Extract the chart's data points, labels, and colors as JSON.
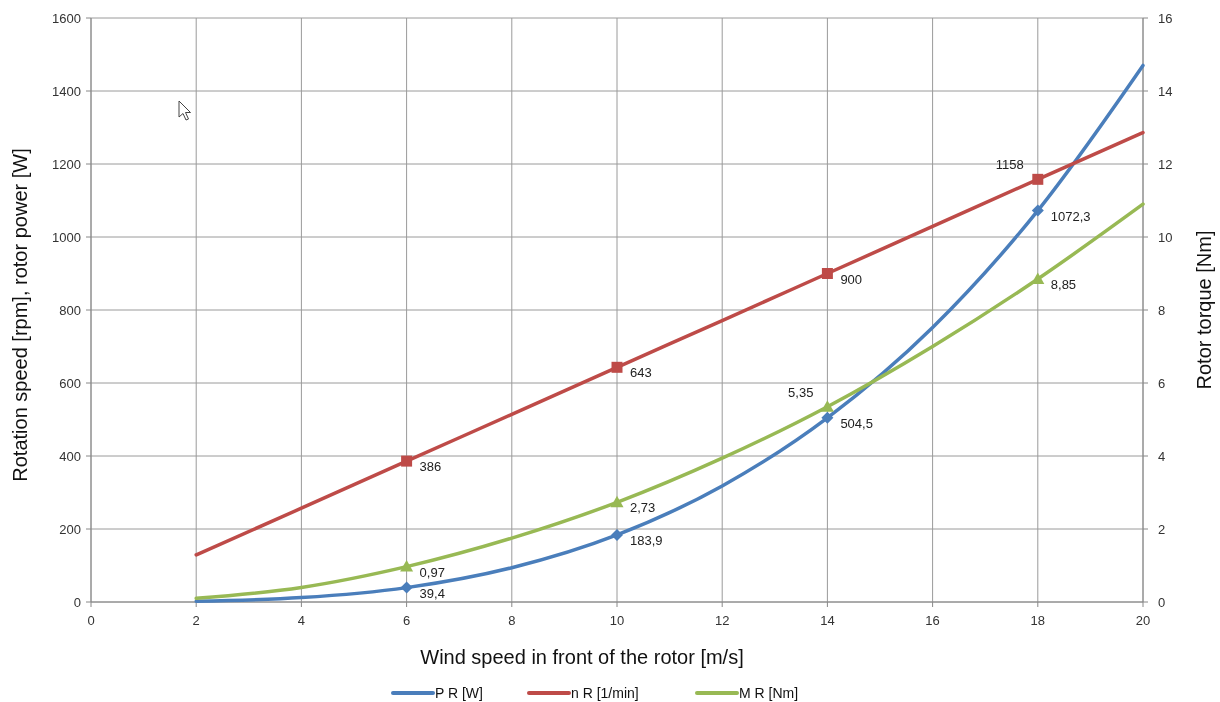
{
  "chart_data": {
    "type": "line",
    "xlabel": "Wind speed in front of the rotor [m/s]",
    "ylabel": "Rotation speed [rpm], rotor power [W]",
    "y2label": "Rotor torque [Nm]",
    "x": [
      2,
      4,
      6,
      8,
      10,
      12,
      14,
      16,
      18,
      20
    ],
    "series": [
      {
        "name": "P R [W]",
        "color": "#4a7ebb",
        "marker": "none",
        "values": [
          2,
          12,
          39.4,
          94,
          183.9,
          318,
          504.5,
          752,
          1072.3,
          1470
        ]
      },
      {
        "name": "n R [1/min]",
        "color": "#be4b48",
        "marker": "none",
        "values": [
          129,
          257,
          386,
          514,
          643,
          771,
          900,
          1029,
          1158,
          1286
        ]
      },
      {
        "name": "M R [Nm]",
        "color": "#98b954",
        "marker": "none",
        "axis": "y2",
        "values": [
          0.1,
          0.4,
          0.97,
          1.75,
          2.73,
          3.94,
          5.35,
          7.0,
          8.85,
          10.9
        ]
      },
      {
        "type": "scatter",
        "color": "#4a7ebb",
        "marker": "diamond",
        "x": [
          6,
          10,
          14,
          18
        ],
        "values": [
          39.4,
          183.9,
          504.5,
          1072.3
        ],
        "value_labels": [
          "39,4",
          "183,9",
          "504,5",
          "1072,3"
        ]
      },
      {
        "type": "scatter",
        "color": "#be4b48",
        "marker": "square",
        "x": [
          6,
          10,
          14,
          18
        ],
        "values": [
          386,
          643,
          900,
          1158
        ],
        "value_labels": [
          "386",
          "643",
          "900",
          "1158"
        ]
      },
      {
        "type": "scatter",
        "color": "#98b954",
        "marker": "triangle",
        "axis": "y2",
        "x": [
          6,
          10,
          14,
          18
        ],
        "values": [
          0.97,
          2.73,
          5.35,
          8.85
        ],
        "value_labels": [
          "0,97",
          "2,73",
          "5,35",
          "8,85"
        ]
      }
    ],
    "xlim": [
      0,
      20
    ],
    "xticks": [
      0,
      2,
      4,
      6,
      8,
      10,
      12,
      14,
      16,
      18,
      20
    ],
    "ylim": [
      0,
      1600
    ],
    "yticks": [
      0,
      200,
      400,
      600,
      800,
      1000,
      1200,
      1400,
      1600
    ],
    "y2lim": [
      0,
      16
    ],
    "y2ticks": [
      0,
      2,
      4,
      6,
      8,
      10,
      12,
      14,
      16
    ],
    "grid": true,
    "legend": "bottom",
    "line_style": "solid"
  }
}
